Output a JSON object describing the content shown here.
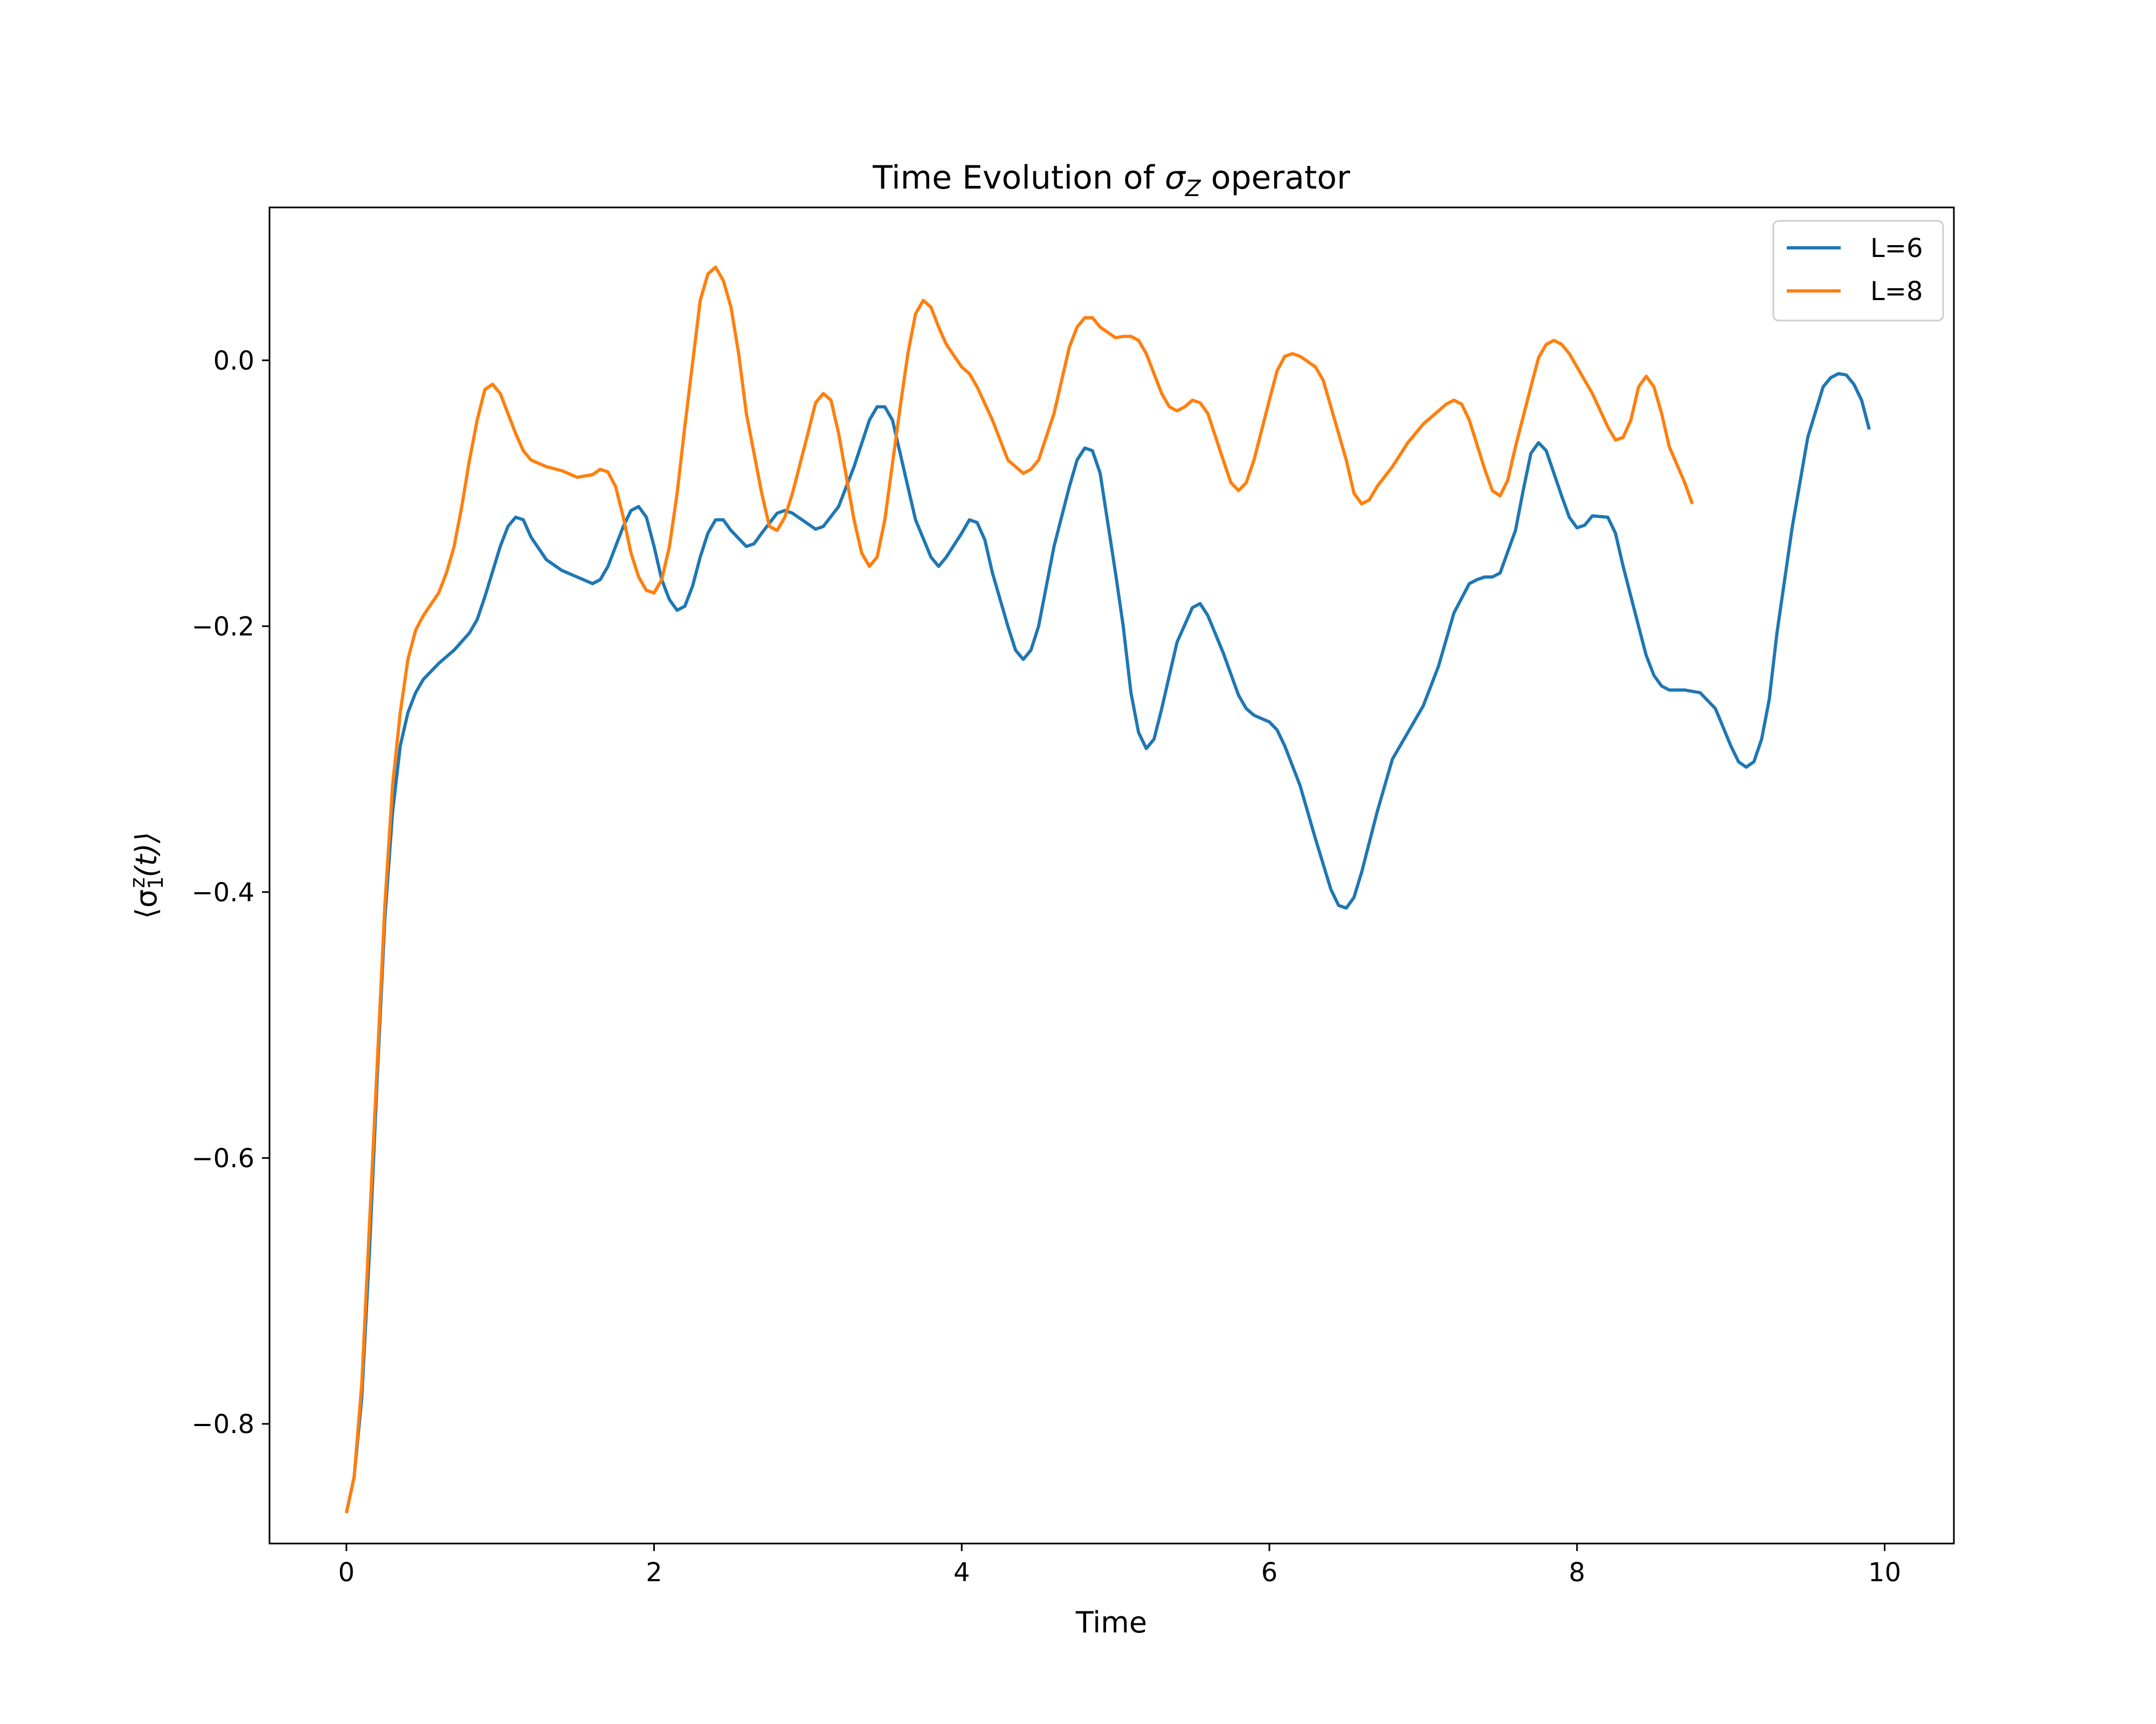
{
  "chart_data": {
    "type": "line",
    "title": "Time Evolution of σZ operator",
    "title_parts": {
      "prefix": "Time Evolution of ",
      "symbol": "σ",
      "subscript": "Z",
      "suffix": " operator"
    },
    "xlabel": "Time",
    "ylabel": "⟨σ1z(t)⟩",
    "ylabel_parts": {
      "open": "⟨σ",
      "sub": "1",
      "sup": "z",
      "rest": "(t)⟩"
    },
    "xlim": [
      -0.5,
      10.45
    ],
    "ylim": [
      -0.89,
      0.115
    ],
    "xticks": [
      0,
      2,
      4,
      6,
      8,
      10
    ],
    "xtick_labels": [
      "0",
      "2",
      "4",
      "6",
      "8",
      "10"
    ],
    "yticks": [
      0.0,
      -0.2,
      -0.4,
      -0.6,
      -0.8
    ],
    "ytick_labels": [
      "0.0",
      "−0.2",
      "−0.4",
      "−0.6",
      "−0.8"
    ],
    "grid": false,
    "legend_position": "top-right",
    "series": [
      {
        "name": "L=6",
        "color": "#1f77b4",
        "points": [
          [
            0,
            -0.867
          ],
          [
            0.05,
            -0.84
          ],
          [
            0.1,
            -0.78
          ],
          [
            0.15,
            -0.67
          ],
          [
            0.2,
            -0.54
          ],
          [
            0.25,
            -0.42
          ],
          [
            0.3,
            -0.34
          ],
          [
            0.35,
            -0.29
          ],
          [
            0.4,
            -0.265
          ],
          [
            0.45,
            -0.25
          ],
          [
            0.5,
            -0.24
          ],
          [
            0.6,
            -0.228
          ],
          [
            0.7,
            -0.218
          ],
          [
            0.8,
            -0.205
          ],
          [
            0.85,
            -0.195
          ],
          [
            0.9,
            -0.178
          ],
          [
            1.0,
            -0.14
          ],
          [
            1.05,
            -0.125
          ],
          [
            1.1,
            -0.118
          ],
          [
            1.15,
            -0.12
          ],
          [
            1.2,
            -0.133
          ],
          [
            1.3,
            -0.15
          ],
          [
            1.4,
            -0.158
          ],
          [
            1.5,
            -0.163
          ],
          [
            1.6,
            -0.168
          ],
          [
            1.65,
            -0.165
          ],
          [
            1.7,
            -0.155
          ],
          [
            1.75,
            -0.14
          ],
          [
            1.8,
            -0.125
          ],
          [
            1.85,
            -0.113
          ],
          [
            1.9,
            -0.11
          ],
          [
            1.95,
            -0.118
          ],
          [
            2.0,
            -0.14
          ],
          [
            2.05,
            -0.165
          ],
          [
            2.1,
            -0.18
          ],
          [
            2.15,
            -0.188
          ],
          [
            2.2,
            -0.185
          ],
          [
            2.25,
            -0.17
          ],
          [
            2.3,
            -0.148
          ],
          [
            2.35,
            -0.13
          ],
          [
            2.4,
            -0.12
          ],
          [
            2.45,
            -0.12
          ],
          [
            2.5,
            -0.128
          ],
          [
            2.6,
            -0.14
          ],
          [
            2.65,
            -0.138
          ],
          [
            2.7,
            -0.13
          ],
          [
            2.8,
            -0.115
          ],
          [
            2.85,
            -0.113
          ],
          [
            2.9,
            -0.115
          ],
          [
            3.0,
            -0.123
          ],
          [
            3.05,
            -0.127
          ],
          [
            3.1,
            -0.125
          ],
          [
            3.2,
            -0.11
          ],
          [
            3.3,
            -0.08
          ],
          [
            3.4,
            -0.045
          ],
          [
            3.45,
            -0.035
          ],
          [
            3.5,
            -0.035
          ],
          [
            3.55,
            -0.045
          ],
          [
            3.6,
            -0.07
          ],
          [
            3.7,
            -0.12
          ],
          [
            3.8,
            -0.148
          ],
          [
            3.85,
            -0.155
          ],
          [
            3.9,
            -0.148
          ],
          [
            4.0,
            -0.13
          ],
          [
            4.05,
            -0.12
          ],
          [
            4.1,
            -0.122
          ],
          [
            4.15,
            -0.135
          ],
          [
            4.2,
            -0.16
          ],
          [
            4.3,
            -0.2
          ],
          [
            4.35,
            -0.218
          ],
          [
            4.4,
            -0.225
          ],
          [
            4.45,
            -0.218
          ],
          [
            4.5,
            -0.2
          ],
          [
            4.6,
            -0.14
          ],
          [
            4.7,
            -0.095
          ],
          [
            4.75,
            -0.075
          ],
          [
            4.8,
            -0.066
          ],
          [
            4.85,
            -0.068
          ],
          [
            4.9,
            -0.085
          ],
          [
            5.0,
            -0.16
          ],
          [
            5.05,
            -0.2
          ],
          [
            5.1,
            -0.25
          ],
          [
            5.15,
            -0.28
          ],
          [
            5.2,
            -0.292
          ],
          [
            5.25,
            -0.285
          ],
          [
            5.3,
            -0.262
          ],
          [
            5.4,
            -0.212
          ],
          [
            5.5,
            -0.186
          ],
          [
            5.55,
            -0.183
          ],
          [
            5.6,
            -0.192
          ],
          [
            5.7,
            -0.22
          ],
          [
            5.8,
            -0.252
          ],
          [
            5.85,
            -0.262
          ],
          [
            5.9,
            -0.267
          ],
          [
            6.0,
            -0.272
          ],
          [
            6.05,
            -0.278
          ],
          [
            6.1,
            -0.29
          ],
          [
            6.2,
            -0.32
          ],
          [
            6.3,
            -0.36
          ],
          [
            6.4,
            -0.398
          ],
          [
            6.45,
            -0.41
          ],
          [
            6.5,
            -0.412
          ],
          [
            6.55,
            -0.404
          ],
          [
            6.6,
            -0.385
          ],
          [
            6.7,
            -0.34
          ],
          [
            6.8,
            -0.3
          ],
          [
            6.9,
            -0.28
          ],
          [
            7.0,
            -0.26
          ],
          [
            7.05,
            -0.245
          ],
          [
            7.1,
            -0.23
          ],
          [
            7.2,
            -0.19
          ],
          [
            7.3,
            -0.168
          ],
          [
            7.35,
            -0.165
          ],
          [
            7.4,
            -0.163
          ],
          [
            7.45,
            -0.163
          ],
          [
            7.5,
            -0.16
          ],
          [
            7.6,
            -0.128
          ],
          [
            7.65,
            -0.098
          ],
          [
            7.7,
            -0.07
          ],
          [
            7.75,
            -0.062
          ],
          [
            7.8,
            -0.068
          ],
          [
            7.9,
            -0.102
          ],
          [
            7.95,
            -0.118
          ],
          [
            8.0,
            -0.126
          ],
          [
            8.05,
            -0.124
          ],
          [
            8.1,
            -0.117
          ],
          [
            8.2,
            -0.118
          ],
          [
            8.25,
            -0.13
          ],
          [
            8.3,
            -0.155
          ],
          [
            8.4,
            -0.2
          ],
          [
            8.45,
            -0.222
          ],
          [
            8.5,
            -0.237
          ],
          [
            8.55,
            -0.245
          ],
          [
            8.6,
            -0.248
          ],
          [
            8.7,
            -0.248
          ],
          [
            8.8,
            -0.25
          ],
          [
            8.9,
            -0.262
          ],
          [
            9.0,
            -0.29
          ],
          [
            9.05,
            -0.302
          ],
          [
            9.1,
            -0.306
          ],
          [
            9.15,
            -0.302
          ],
          [
            9.2,
            -0.285
          ],
          [
            9.25,
            -0.255
          ],
          [
            9.3,
            -0.205
          ],
          [
            9.4,
            -0.125
          ],
          [
            9.5,
            -0.058
          ],
          [
            9.6,
            -0.02
          ],
          [
            9.65,
            -0.013
          ],
          [
            9.7,
            -0.01
          ],
          [
            9.75,
            -0.011
          ],
          [
            9.8,
            -0.018
          ],
          [
            9.85,
            -0.03
          ],
          [
            9.9,
            -0.052
          ]
        ]
      },
      {
        "name": "L=8",
        "color": "#ff7f0e",
        "points": [
          [
            0,
            -0.867
          ],
          [
            0.05,
            -0.84
          ],
          [
            0.1,
            -0.77
          ],
          [
            0.15,
            -0.65
          ],
          [
            0.2,
            -0.53
          ],
          [
            0.25,
            -0.41
          ],
          [
            0.3,
            -0.32
          ],
          [
            0.35,
            -0.265
          ],
          [
            0.4,
            -0.225
          ],
          [
            0.45,
            -0.203
          ],
          [
            0.5,
            -0.192
          ],
          [
            0.6,
            -0.175
          ],
          [
            0.65,
            -0.16
          ],
          [
            0.7,
            -0.14
          ],
          [
            0.75,
            -0.11
          ],
          [
            0.8,
            -0.075
          ],
          [
            0.85,
            -0.045
          ],
          [
            0.9,
            -0.022
          ],
          [
            0.95,
            -0.018
          ],
          [
            1.0,
            -0.025
          ],
          [
            1.05,
            -0.04
          ],
          [
            1.1,
            -0.055
          ],
          [
            1.15,
            -0.068
          ],
          [
            1.2,
            -0.075
          ],
          [
            1.3,
            -0.08
          ],
          [
            1.4,
            -0.083
          ],
          [
            1.5,
            -0.088
          ],
          [
            1.6,
            -0.086
          ],
          [
            1.65,
            -0.082
          ],
          [
            1.7,
            -0.084
          ],
          [
            1.75,
            -0.095
          ],
          [
            1.8,
            -0.118
          ],
          [
            1.85,
            -0.145
          ],
          [
            1.9,
            -0.163
          ],
          [
            1.95,
            -0.173
          ],
          [
            2.0,
            -0.175
          ],
          [
            2.05,
            -0.165
          ],
          [
            2.1,
            -0.14
          ],
          [
            2.15,
            -0.1
          ],
          [
            2.2,
            -0.05
          ],
          [
            2.3,
            0.045
          ],
          [
            2.35,
            0.065
          ],
          [
            2.4,
            0.07
          ],
          [
            2.45,
            0.06
          ],
          [
            2.5,
            0.04
          ],
          [
            2.55,
            0.005
          ],
          [
            2.6,
            -0.04
          ],
          [
            2.7,
            -0.1
          ],
          [
            2.75,
            -0.125
          ],
          [
            2.8,
            -0.128
          ],
          [
            2.85,
            -0.118
          ],
          [
            2.9,
            -0.1
          ],
          [
            3.0,
            -0.055
          ],
          [
            3.05,
            -0.032
          ],
          [
            3.1,
            -0.025
          ],
          [
            3.15,
            -0.03
          ],
          [
            3.2,
            -0.055
          ],
          [
            3.3,
            -0.12
          ],
          [
            3.35,
            -0.145
          ],
          [
            3.4,
            -0.155
          ],
          [
            3.45,
            -0.148
          ],
          [
            3.5,
            -0.12
          ],
          [
            3.6,
            -0.035
          ],
          [
            3.65,
            0.005
          ],
          [
            3.7,
            0.035
          ],
          [
            3.75,
            0.045
          ],
          [
            3.8,
            0.04
          ],
          [
            3.85,
            0.025
          ],
          [
            3.9,
            0.012
          ],
          [
            4.0,
            -0.005
          ],
          [
            4.05,
            -0.01
          ],
          [
            4.1,
            -0.02
          ],
          [
            4.2,
            -0.045
          ],
          [
            4.3,
            -0.075
          ],
          [
            4.4,
            -0.085
          ],
          [
            4.45,
            -0.082
          ],
          [
            4.5,
            -0.075
          ],
          [
            4.6,
            -0.04
          ],
          [
            4.65,
            -0.015
          ],
          [
            4.7,
            0.01
          ],
          [
            4.75,
            0.025
          ],
          [
            4.8,
            0.032
          ],
          [
            4.85,
            0.032
          ],
          [
            4.9,
            0.025
          ],
          [
            5.0,
            0.017
          ],
          [
            5.05,
            0.018
          ],
          [
            5.1,
            0.018
          ],
          [
            5.15,
            0.015
          ],
          [
            5.2,
            0.005
          ],
          [
            5.3,
            -0.025
          ],
          [
            5.35,
            -0.035
          ],
          [
            5.4,
            -0.038
          ],
          [
            5.45,
            -0.035
          ],
          [
            5.5,
            -0.03
          ],
          [
            5.55,
            -0.032
          ],
          [
            5.6,
            -0.04
          ],
          [
            5.7,
            -0.075
          ],
          [
            5.75,
            -0.092
          ],
          [
            5.8,
            -0.098
          ],
          [
            5.85,
            -0.092
          ],
          [
            5.9,
            -0.075
          ],
          [
            6.0,
            -0.03
          ],
          [
            6.05,
            -0.008
          ],
          [
            6.1,
            0.003
          ],
          [
            6.15,
            0.005
          ],
          [
            6.2,
            0.003
          ],
          [
            6.3,
            -0.005
          ],
          [
            6.35,
            -0.015
          ],
          [
            6.4,
            -0.035
          ],
          [
            6.5,
            -0.075
          ],
          [
            6.55,
            -0.1
          ],
          [
            6.6,
            -0.108
          ],
          [
            6.65,
            -0.105
          ],
          [
            6.7,
            -0.095
          ],
          [
            6.8,
            -0.08
          ],
          [
            6.9,
            -0.062
          ],
          [
            7.0,
            -0.048
          ],
          [
            7.1,
            -0.038
          ],
          [
            7.15,
            -0.033
          ],
          [
            7.2,
            -0.03
          ],
          [
            7.25,
            -0.033
          ],
          [
            7.3,
            -0.045
          ],
          [
            7.4,
            -0.082
          ],
          [
            7.45,
            -0.098
          ],
          [
            7.5,
            -0.102
          ],
          [
            7.55,
            -0.09
          ],
          [
            7.6,
            -0.065
          ],
          [
            7.7,
            -0.02
          ],
          [
            7.75,
            0.002
          ],
          [
            7.8,
            0.012
          ],
          [
            7.85,
            0.015
          ],
          [
            7.9,
            0.012
          ],
          [
            7.95,
            0.005
          ],
          [
            8.0,
            -0.005
          ],
          [
            8.1,
            -0.025
          ],
          [
            8.2,
            -0.05
          ],
          [
            8.25,
            -0.06
          ],
          [
            8.3,
            -0.058
          ],
          [
            8.35,
            -0.045
          ],
          [
            8.4,
            -0.02
          ],
          [
            8.45,
            -0.012
          ],
          [
            8.5,
            -0.02
          ],
          [
            8.55,
            -0.04
          ],
          [
            8.6,
            -0.065
          ],
          [
            8.7,
            -0.092
          ],
          [
            8.75,
            -0.108
          ]
        ]
      }
    ]
  }
}
